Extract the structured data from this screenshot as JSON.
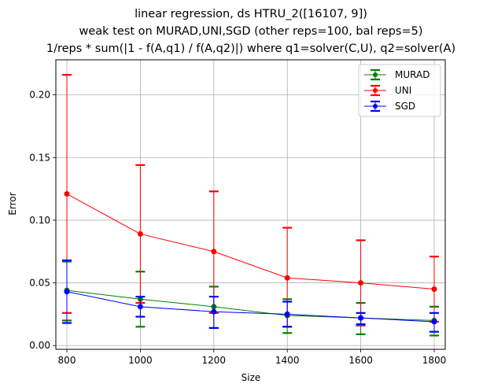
{
  "chart_data": {
    "type": "line",
    "title": [
      "linear regression, ds HTRU_2([16107, 9])",
      "weak test on MURAD,UNI,SGD (other reps=100, bal reps=5)",
      "1/reps * sum(|1 - f(A,q1) / f(A,q2)|) where q1=solver(C,U), q2=solver(A)"
    ],
    "xlabel": "Size",
    "ylabel": "Error",
    "x": [
      800,
      1000,
      1200,
      1400,
      1600,
      1800
    ],
    "xlim": [
      770,
      1830
    ],
    "ylim": [
      -0.003,
      0.228
    ],
    "xticks": [
      800,
      1000,
      1200,
      1400,
      1600,
      1800
    ],
    "yticks": [
      0.0,
      0.05,
      0.1,
      0.15,
      0.2
    ],
    "ytick_labels": [
      "0.00",
      "0.05",
      "0.10",
      "0.15",
      "0.20"
    ],
    "grid": true,
    "legend_position": "top-right",
    "series": [
      {
        "name": "MURAD",
        "color": "#008000",
        "values": [
          0.044,
          0.037,
          0.031,
          0.024,
          0.022,
          0.02
        ],
        "err_low": [
          0.02,
          0.015,
          0.014,
          0.01,
          0.009,
          0.008
        ],
        "err_high": [
          0.067,
          0.059,
          0.047,
          0.037,
          0.034,
          0.031
        ]
      },
      {
        "name": "UNI",
        "color": "#ff0000",
        "values": [
          0.121,
          0.089,
          0.075,
          0.054,
          0.05,
          0.045
        ],
        "err_low": [
          0.026,
          0.034,
          0.026,
          0.015,
          0.016,
          0.019
        ],
        "err_high": [
          0.216,
          0.144,
          0.123,
          0.094,
          0.084,
          0.071
        ]
      },
      {
        "name": "SGD",
        "color": "#0000ff",
        "values": [
          0.043,
          0.031,
          0.027,
          0.025,
          0.022,
          0.019
        ],
        "err_low": [
          0.018,
          0.023,
          0.014,
          0.015,
          0.017,
          0.011
        ],
        "err_high": [
          0.068,
          0.039,
          0.039,
          0.035,
          0.026,
          0.026
        ]
      }
    ]
  }
}
